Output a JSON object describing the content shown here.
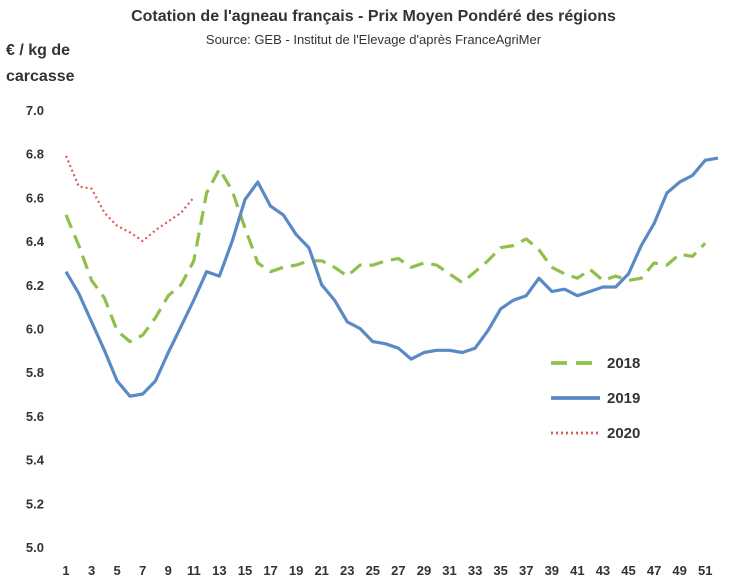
{
  "chart_data": {
    "type": "line",
    "title": "Cotation de l'agneau français - Prix Moyen Pondéré des régions",
    "subtitle": "Source: GEB - Institut de l'Elevage d'après FranceAgriMer",
    "ylabel": "€ / kg de carcasse",
    "ylim": [
      5.0,
      7.0
    ],
    "yticks": [
      "5.0",
      "5.2",
      "5.4",
      "5.6",
      "5.8",
      "6.0",
      "6.2",
      "6.4",
      "6.6",
      "6.8",
      "7.0"
    ],
    "xlim": [
      1,
      52
    ],
    "xticks": [
      "1",
      "3",
      "5",
      "7",
      "9",
      "11",
      "13",
      "15",
      "17",
      "19",
      "21",
      "23",
      "25",
      "27",
      "29",
      "31",
      "33",
      "35",
      "37",
      "39",
      "41",
      "43",
      "45",
      "47",
      "49",
      "51"
    ],
    "grid": false,
    "legend_position": "center-right",
    "series": [
      {
        "name": "2018",
        "color": "#8fc04a",
        "style": "dashed",
        "x": [
          1,
          2,
          3,
          4,
          5,
          6,
          7,
          8,
          9,
          10,
          11,
          12,
          13,
          14,
          15,
          16,
          17,
          18,
          19,
          20,
          21,
          22,
          23,
          24,
          25,
          26,
          27,
          28,
          29,
          30,
          31,
          32,
          33,
          34,
          35,
          36,
          37,
          38,
          39,
          40,
          41,
          42,
          43,
          44,
          45,
          46,
          47,
          48,
          49,
          50,
          51
        ],
        "values": [
          6.52,
          6.38,
          6.22,
          6.14,
          5.99,
          5.94,
          5.97,
          6.05,
          6.15,
          6.2,
          6.31,
          6.62,
          6.73,
          6.63,
          6.46,
          6.3,
          6.26,
          6.28,
          6.29,
          6.31,
          6.31,
          6.28,
          6.24,
          6.29,
          6.29,
          6.31,
          6.32,
          6.28,
          6.3,
          6.29,
          6.25,
          6.21,
          6.26,
          6.31,
          6.37,
          6.38,
          6.41,
          6.36,
          6.28,
          6.25,
          6.23,
          6.27,
          6.22,
          6.24,
          6.22,
          6.23,
          6.3,
          6.29,
          6.34,
          6.33,
          6.39
        ]
      },
      {
        "name": "2019",
        "color": "#5a8ac6",
        "style": "solid",
        "x": [
          1,
          2,
          3,
          4,
          5,
          6,
          7,
          8,
          9,
          10,
          11,
          12,
          13,
          14,
          15,
          16,
          17,
          18,
          19,
          20,
          21,
          22,
          23,
          24,
          25,
          26,
          27,
          28,
          29,
          30,
          31,
          32,
          33,
          34,
          35,
          36,
          37,
          38,
          39,
          40,
          41,
          42,
          43,
          44,
          45,
          46,
          47,
          48,
          49,
          50,
          51,
          52
        ],
        "values": [
          6.26,
          6.16,
          6.03,
          5.9,
          5.76,
          5.69,
          5.7,
          5.76,
          5.89,
          6.01,
          6.13,
          6.26,
          6.24,
          6.4,
          6.59,
          6.67,
          6.56,
          6.52,
          6.43,
          6.37,
          6.2,
          6.13,
          6.03,
          6.0,
          5.94,
          5.93,
          5.91,
          5.86,
          5.89,
          5.9,
          5.9,
          5.89,
          5.91,
          5.99,
          6.09,
          6.13,
          6.15,
          6.23,
          6.17,
          6.18,
          6.15,
          6.17,
          6.19,
          6.19,
          6.25,
          6.38,
          6.48,
          6.62,
          6.67,
          6.7,
          6.77,
          6.78
        ]
      },
      {
        "name": "2020",
        "color": "#e05a5a",
        "style": "dotted",
        "x": [
          1,
          2,
          3,
          4,
          5,
          6,
          7,
          8,
          9,
          10,
          11
        ],
        "values": [
          6.79,
          6.65,
          6.64,
          6.53,
          6.47,
          6.44,
          6.4,
          6.45,
          6.49,
          6.53,
          6.6
        ]
      }
    ]
  }
}
